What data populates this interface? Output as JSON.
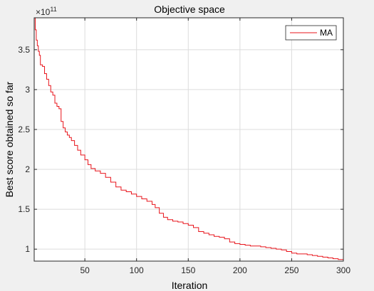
{
  "chart_data": {
    "type": "line",
    "title": "Objective space",
    "xlabel": "Iteration",
    "ylabel": "Best score obtained so far",
    "y_exponent_label": "×10",
    "y_exponent_power": "11",
    "y_exponent": 11,
    "xlim": [
      1,
      300
    ],
    "ylim": [
      0.85,
      3.9
    ],
    "x_ticks": [
      50,
      100,
      150,
      200,
      250,
      300
    ],
    "x_tick_labels": [
      "50",
      "100",
      "150",
      "200",
      "250",
      "300"
    ],
    "y_ticks": [
      1,
      1.5,
      2,
      2.5,
      3,
      3.5
    ],
    "y_tick_labels": [
      "1",
      "1.5",
      "2",
      "2.5",
      "3",
      "3.5"
    ],
    "grid": true,
    "legend_position": "top-right",
    "line_color": "#e8141b",
    "series": [
      {
        "name": "MA",
        "points": [
          [
            1,
            3.9
          ],
          [
            2,
            3.75
          ],
          [
            3,
            3.62
          ],
          [
            4,
            3.55
          ],
          [
            5,
            3.48
          ],
          [
            6,
            3.43
          ],
          [
            7,
            3.31
          ],
          [
            9,
            3.29
          ],
          [
            11,
            3.2
          ],
          [
            13,
            3.13
          ],
          [
            15,
            3.05
          ],
          [
            17,
            2.97
          ],
          [
            19,
            2.93
          ],
          [
            21,
            2.83
          ],
          [
            23,
            2.79
          ],
          [
            25,
            2.76
          ],
          [
            27,
            2.6
          ],
          [
            29,
            2.52
          ],
          [
            31,
            2.47
          ],
          [
            33,
            2.43
          ],
          [
            35,
            2.4
          ],
          [
            37,
            2.36
          ],
          [
            40,
            2.3
          ],
          [
            43,
            2.24
          ],
          [
            46,
            2.18
          ],
          [
            50,
            2.12
          ],
          [
            53,
            2.06
          ],
          [
            56,
            2.01
          ],
          [
            60,
            1.98
          ],
          [
            65,
            1.95
          ],
          [
            70,
            1.9
          ],
          [
            75,
            1.84
          ],
          [
            80,
            1.78
          ],
          [
            85,
            1.74
          ],
          [
            90,
            1.72
          ],
          [
            95,
            1.69
          ],
          [
            100,
            1.66
          ],
          [
            105,
            1.63
          ],
          [
            110,
            1.6
          ],
          [
            115,
            1.56
          ],
          [
            118,
            1.52
          ],
          [
            122,
            1.45
          ],
          [
            126,
            1.4
          ],
          [
            130,
            1.37
          ],
          [
            135,
            1.35
          ],
          [
            140,
            1.34
          ],
          [
            145,
            1.32
          ],
          [
            150,
            1.3
          ],
          [
            155,
            1.27
          ],
          [
            160,
            1.22
          ],
          [
            165,
            1.2
          ],
          [
            170,
            1.18
          ],
          [
            175,
            1.16
          ],
          [
            180,
            1.15
          ],
          [
            185,
            1.13
          ],
          [
            190,
            1.09
          ],
          [
            195,
            1.07
          ],
          [
            200,
            1.06
          ],
          [
            205,
            1.05
          ],
          [
            210,
            1.04
          ],
          [
            215,
            1.04
          ],
          [
            220,
            1.03
          ],
          [
            225,
            1.02
          ],
          [
            230,
            1.01
          ],
          [
            235,
            1.0
          ],
          [
            240,
            0.99
          ],
          [
            245,
            0.97
          ],
          [
            250,
            0.95
          ],
          [
            255,
            0.94
          ],
          [
            260,
            0.94
          ],
          [
            265,
            0.93
          ],
          [
            270,
            0.92
          ],
          [
            275,
            0.91
          ],
          [
            280,
            0.9
          ],
          [
            285,
            0.89
          ],
          [
            290,
            0.88
          ],
          [
            295,
            0.87
          ],
          [
            300,
            0.85
          ]
        ]
      }
    ]
  }
}
